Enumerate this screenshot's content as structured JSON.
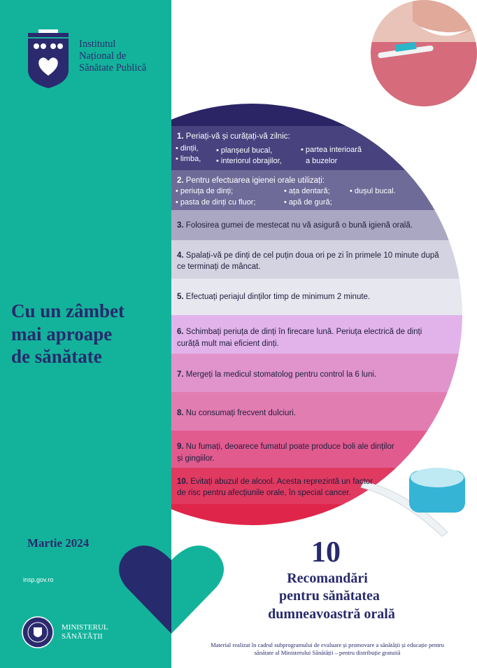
{
  "logo": {
    "lines": [
      "Institutul",
      "Național de",
      "Sănătate Publică"
    ]
  },
  "side": {
    "title_lines": [
      "Cu un zâmbet",
      "mai aproape",
      "de sănătate"
    ],
    "date": "Martie 2024",
    "website": "insp.gov.ro",
    "ministry_lines": [
      "MINISTERUL",
      "SĂNĂTĂȚII"
    ]
  },
  "recommendations": [
    {
      "number": "1.",
      "lines": [
        "Periați-vă și curățați-vă zilnic:"
      ],
      "bullets": [
        "• dinții,",
        "• limba,",
        "• planșeul bucal,",
        "• interiorul obrajilor,",
        "• partea interioară",
        "a buzelor"
      ]
    },
    {
      "number": "2.",
      "lines": [
        "Pentru efectuarea igienei orale utilizați:"
      ],
      "bullets": [
        "• periuța de dinți;",
        "• pasta de dinți cu fluor;",
        "• ața dentară;",
        "• apă de gură;",
        "• dușul bucal."
      ]
    },
    {
      "number": "3.",
      "lines": [
        "Folosirea gumei de mestecat nu vă asigură o bună igienă orală."
      ]
    },
    {
      "number": "4.",
      "lines": [
        "Spalați-vă pe dinți de cel puțin doua ori pe zi în primele 10 minute după",
        "ce terminați de mâncat."
      ]
    },
    {
      "number": "5.",
      "lines": [
        "Efectuați periajul dinților timp de  minimum 2 minute."
      ]
    },
    {
      "number": "6.",
      "lines": [
        "Schimbați  periuța de dinți în firecare lună. Periuța electrică de dinți",
        "curăță mult mai eficient dinți."
      ]
    },
    {
      "number": "7.",
      "lines": [
        "Mergeți la  medicul stomatolog  pentru control la 6 luni."
      ]
    },
    {
      "number": "8.",
      "lines": [
        "Nu consumați frecvent dulciuri."
      ]
    },
    {
      "number": "9.",
      "lines": [
        "Nu fumați, deoarece fumatul poate produce boli ale dinților",
        "și gingiilor."
      ]
    },
    {
      "number": "10.",
      "lines": [
        "Evitați abuzul de alcool. Acesta reprezintă un factor",
        "de risc pentru afecțiunile orale, în special cancer."
      ]
    }
  ],
  "footer": {
    "number": "10",
    "title_lines": [
      "Recomandări",
      "pentru sănătatea",
      "dumneavoastră orală"
    ],
    "note_lines": [
      "Material realizat în cadrul subprogramului de evaluare și promovare a sănătății și educație pentru",
      "sănătate al Ministerului Sănătății – pentru distribuție gratuită"
    ]
  }
}
